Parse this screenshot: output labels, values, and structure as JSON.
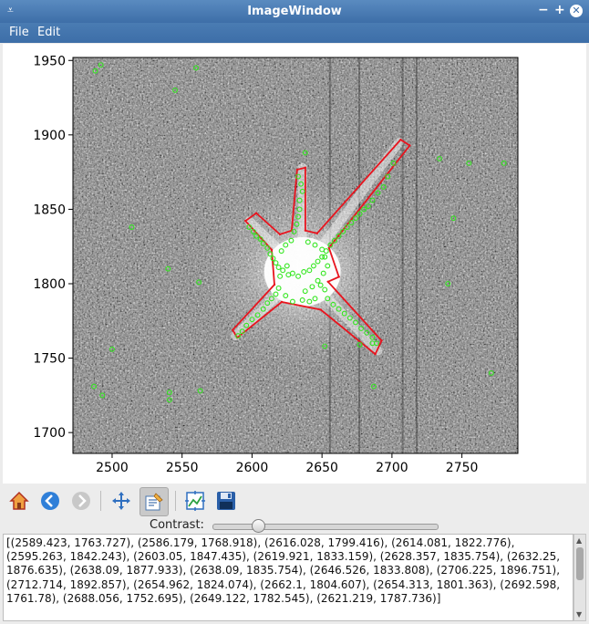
{
  "window": {
    "title": "ImageWindow"
  },
  "titlebar_icons": {
    "menu": "chevron-down-icon",
    "minimize": "minimize-icon",
    "maximize": "maximize-icon",
    "close": "close-icon"
  },
  "menubar": {
    "file": "File",
    "edit": "Edit"
  },
  "chart_data": {
    "type": "scatter",
    "xlim": [
      2472,
      2790
    ],
    "ylim": [
      1686,
      1952
    ],
    "xticks": [
      2500,
      2550,
      2600,
      2650,
      2700,
      2750
    ],
    "yticks": [
      1700,
      1750,
      1800,
      1850,
      1900,
      1950
    ],
    "title": "",
    "xlabel": "",
    "ylabel": "",
    "image": "grayscale star field with bright central star and diffraction spikes",
    "polygon_color": "#e8141e",
    "point_color": "#33e61f",
    "polygon": [
      [
        2589.423,
        1763.727
      ],
      [
        2586.179,
        1768.918
      ],
      [
        2616.028,
        1799.416
      ],
      [
        2614.081,
        1822.776
      ],
      [
        2595.263,
        1842.243
      ],
      [
        2603.05,
        1847.435
      ],
      [
        2619.921,
        1833.159
      ],
      [
        2628.357,
        1835.754
      ],
      [
        2632.25,
        1876.635
      ],
      [
        2638.09,
        1877.933
      ],
      [
        2638.09,
        1835.754
      ],
      [
        2646.526,
        1833.808
      ],
      [
        2706.225,
        1896.751
      ],
      [
        2712.714,
        1892.857
      ],
      [
        2654.962,
        1824.074
      ],
      [
        2662.1,
        1804.607
      ],
      [
        2654.313,
        1801.363
      ],
      [
        2692.598,
        1761.78
      ],
      [
        2688.056,
        1752.695
      ],
      [
        2649.122,
        1782.545
      ],
      [
        2621.219,
        1787.736
      ]
    ],
    "points": [
      [
        2598,
        1838
      ],
      [
        2601,
        1835
      ],
      [
        2603,
        1832
      ],
      [
        2606,
        1830
      ],
      [
        2608,
        1827
      ],
      [
        2611,
        1824
      ],
      [
        2613,
        1820
      ],
      [
        2615,
        1817
      ],
      [
        2617,
        1814
      ],
      [
        2619,
        1811
      ],
      [
        2622,
        1809
      ],
      [
        2626,
        1806
      ],
      [
        2629,
        1807
      ],
      [
        2633,
        1805
      ],
      [
        2637,
        1808
      ],
      [
        2641,
        1809
      ],
      [
        2644,
        1812
      ],
      [
        2647,
        1815
      ],
      [
        2650,
        1818
      ],
      [
        2653,
        1822
      ],
      [
        2656,
        1826
      ],
      [
        2659,
        1829
      ],
      [
        2662,
        1832
      ],
      [
        2665,
        1835
      ],
      [
        2668,
        1838
      ],
      [
        2671,
        1841
      ],
      [
        2674,
        1844
      ],
      [
        2677,
        1847
      ],
      [
        2680,
        1850
      ],
      [
        2683,
        1852
      ],
      [
        2686,
        1856
      ],
      [
        2690,
        1861
      ],
      [
        2694,
        1865
      ],
      [
        2697,
        1872
      ],
      [
        2701,
        1881
      ],
      [
        2630,
        1835
      ],
      [
        2632,
        1840
      ],
      [
        2633,
        1845
      ],
      [
        2634,
        1850
      ],
      [
        2634,
        1856
      ],
      [
        2636,
        1862
      ],
      [
        2635,
        1867
      ],
      [
        2633,
        1872
      ],
      [
        2628,
        1829
      ],
      [
        2624,
        1826
      ],
      [
        2621,
        1822
      ],
      [
        2640,
        1828
      ],
      [
        2645,
        1826
      ],
      [
        2650,
        1823
      ],
      [
        2652,
        1818
      ],
      [
        2654,
        1812
      ],
      [
        2651,
        1807
      ],
      [
        2649,
        1799
      ],
      [
        2652,
        1796
      ],
      [
        2654,
        1790
      ],
      [
        2658,
        1786
      ],
      [
        2662,
        1783
      ],
      [
        2666,
        1780
      ],
      [
        2670,
        1777
      ],
      [
        2674,
        1774
      ],
      [
        2678,
        1770
      ],
      [
        2682,
        1767
      ],
      [
        2686,
        1764
      ],
      [
        2689,
        1760
      ],
      [
        2617,
        1793
      ],
      [
        2614,
        1790
      ],
      [
        2611,
        1787
      ],
      [
        2608,
        1783
      ],
      [
        2604,
        1779
      ],
      [
        2600,
        1776
      ],
      [
        2596,
        1772
      ],
      [
        2593,
        1768
      ],
      [
        2590,
        1765
      ],
      [
        2645,
        1790
      ],
      [
        2641,
        1788
      ],
      [
        2636,
        1789
      ],
      [
        2629,
        1788
      ],
      [
        2624,
        1792
      ],
      [
        2619,
        1797
      ],
      [
        2638,
        1795
      ],
      [
        2643,
        1798
      ],
      [
        2647,
        1802
      ],
      [
        2620,
        1805
      ],
      [
        2625,
        1812
      ],
      [
        2492,
        1947
      ],
      [
        2488,
        1943
      ],
      [
        2545,
        1930
      ],
      [
        2560,
        1945
      ],
      [
        2638,
        1888
      ],
      [
        2734,
        1884
      ],
      [
        2755,
        1881
      ],
      [
        2780,
        1881
      ],
      [
        2744,
        1844
      ],
      [
        2514,
        1838
      ],
      [
        2540,
        1810
      ],
      [
        2562,
        1801
      ],
      [
        2740,
        1800
      ],
      [
        2500,
        1756
      ],
      [
        2487,
        1731
      ],
      [
        2493,
        1725
      ],
      [
        2541,
        1722
      ],
      [
        2541,
        1727
      ],
      [
        2563,
        1728
      ],
      [
        2677,
        1759
      ],
      [
        2686,
        1760
      ],
      [
        2687,
        1731
      ],
      [
        2771,
        1740
      ],
      [
        2652,
        1758
      ]
    ]
  },
  "toolbar": {
    "home": "home-icon",
    "back": "arrow-left-icon",
    "forward": "arrow-right-icon",
    "pan": "move-icon",
    "edit": "edit-points-icon",
    "subplots": "configure-subplots-icon",
    "save": "save-icon"
  },
  "contrast": {
    "label": "Contrast:",
    "value": 0.2
  },
  "output": {
    "text": "[(2589.423, 1763.727), (2586.179, 1768.918), (2616.028, 1799.416), (2614.081, 1822.776), (2595.263, 1842.243), (2603.05, 1847.435), (2619.921, 1833.159), (2628.357, 1835.754), (2632.25, 1876.635), (2638.09, 1877.933), (2638.09, 1835.754), (2646.526, 1833.808), (2706.225, 1896.751), (2712.714, 1892.857), (2654.962, 1824.074), (2662.1, 1804.607), (2654.313, 1801.363), (2692.598, 1761.78), (2688.056, 1752.695), (2649.122, 1782.545), (2621.219, 1787.736)]"
  }
}
